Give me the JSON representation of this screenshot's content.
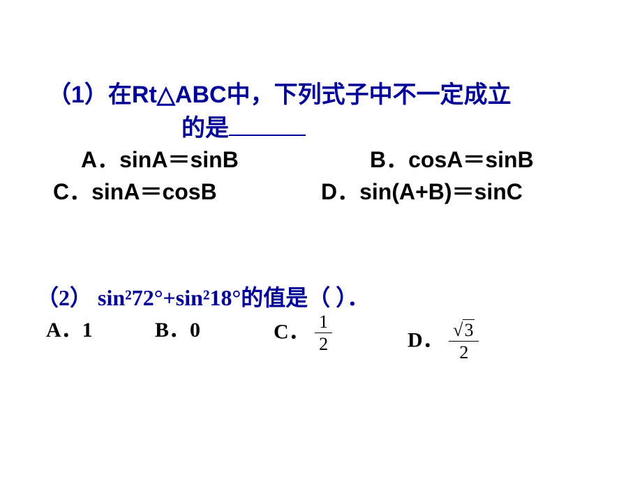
{
  "colors": {
    "accent": "#000099",
    "text": "#000000",
    "background": "#ffffff"
  },
  "typography": {
    "question_fontsize": 34,
    "option_fontsize": 32,
    "q2_fontsize": 32,
    "fraction_fontsize": 26,
    "weight": "bold"
  },
  "q1": {
    "line1": "（1）在Rt△ABC中，下列式子中不一定成立",
    "line2": "的是",
    "options": {
      "A": "A．sinA＝sinB",
      "B": "B．cosA＝sinB",
      "C": "C．sinA＝cosB",
      "D": "D．sin(A+B)＝sinC"
    }
  },
  "q2": {
    "stem": "（2） sin²72°+sin²18°的值是（ ）．",
    "options": {
      "A": "A．1",
      "B": "B．0",
      "C_label": "C．",
      "C_frac": {
        "num": "1",
        "den": "2"
      },
      "D_label": "D．",
      "D_frac": {
        "num_sqrt": "3",
        "den": "2"
      }
    }
  }
}
